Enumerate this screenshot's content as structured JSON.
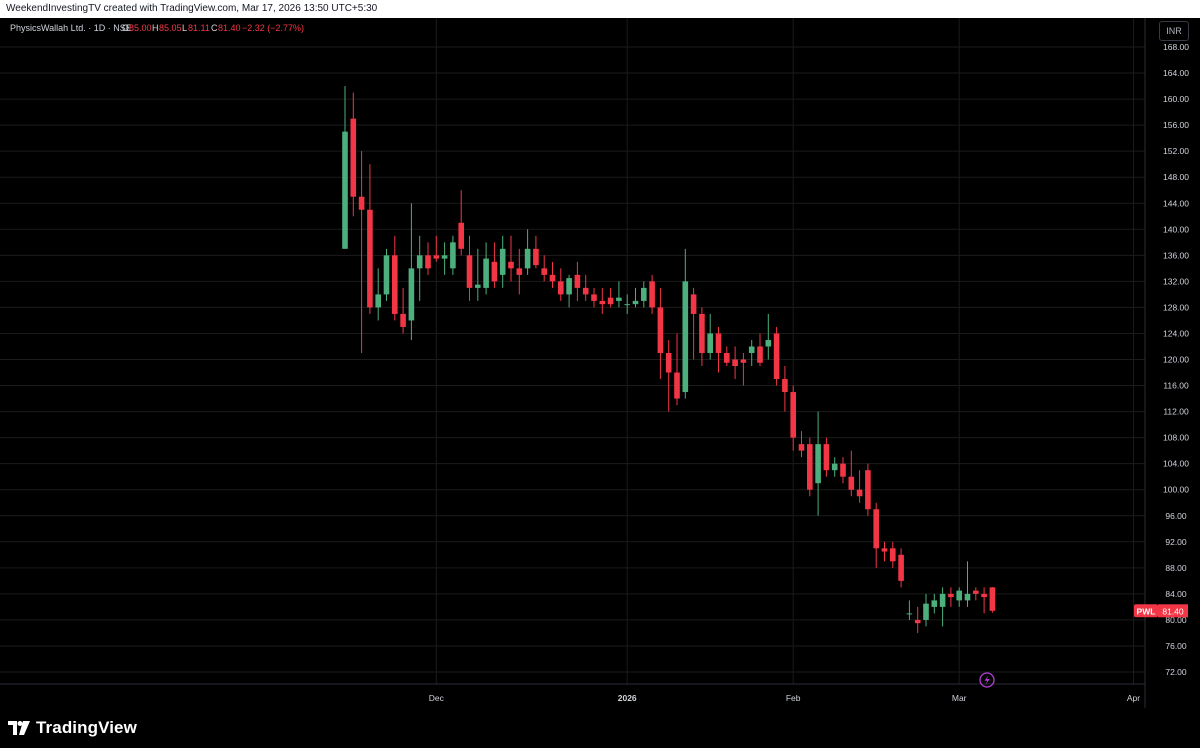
{
  "top_banner": "WeekendInvestingTV created with TradingView.com, Mar 17, 2026 13:50 UTC+5:30",
  "legend": {
    "symbol": "PhysicsWallah Ltd. · 1D · NSE",
    "o_label": "O",
    "o_value": "85.00",
    "h_label": "H",
    "h_value": "85.05",
    "l_label": "L",
    "l_value": "81.11",
    "c_label": "C",
    "c_value": "81.40",
    "change": "−2.32 (−2.77%)"
  },
  "currency_button": "INR",
  "brand": "TradingView",
  "price_tag": {
    "symbol": "PWL",
    "value": "81.40"
  },
  "colors": {
    "up": "#26a69a",
    "up_body": "#4caf7d",
    "down": "#f23645",
    "background": "#000000",
    "grid": "#1b1b1b",
    "axis_text": "#d1d4dc"
  },
  "chart_data": {
    "type": "candlestick",
    "y_ticks": [
      72,
      76,
      80,
      84,
      88,
      92,
      96,
      100,
      104,
      108,
      112,
      116,
      120,
      124,
      128,
      132,
      136,
      140,
      144,
      148,
      152,
      156,
      160,
      164,
      168
    ],
    "y_tick_labels": [
      "72.00",
      "76.00",
      "80.00",
      "84.00",
      "88.00",
      "92.00",
      "96.00",
      "100.00",
      "104.00",
      "108.00",
      "112.00",
      "116.00",
      "120.00",
      "124.00",
      "128.00",
      "132.00",
      "136.00",
      "140.00",
      "144.00",
      "148.00",
      "152.00",
      "156.00",
      "160.00",
      "164.00",
      "168.00"
    ],
    "ylim": [
      69,
      172
    ],
    "x_labels": [
      {
        "label": "Dec",
        "index": 11
      },
      {
        "label": "2026",
        "index": 34
      },
      {
        "label": "Feb",
        "index": 54
      },
      {
        "label": "Mar",
        "index": 74
      },
      {
        "label": "Apr",
        "index": 95
      }
    ],
    "x_count": 100,
    "candles": [
      {
        "o": 137.0,
        "h": 162.0,
        "l": 137.0,
        "c": 155.0
      },
      {
        "o": 157.0,
        "h": 161.0,
        "l": 142.0,
        "c": 145.0
      },
      {
        "o": 145.0,
        "h": 152.0,
        "l": 121.0,
        "c": 143.0
      },
      {
        "o": 143.0,
        "h": 150.0,
        "l": 127.0,
        "c": 128.0
      },
      {
        "o": 128.0,
        "h": 134.0,
        "l": 126.0,
        "c": 130.0
      },
      {
        "o": 130.0,
        "h": 137.0,
        "l": 129.0,
        "c": 136.0
      },
      {
        "o": 136.0,
        "h": 139.0,
        "l": 126.0,
        "c": 127.0
      },
      {
        "o": 127.0,
        "h": 131.0,
        "l": 124.0,
        "c": 125.0
      },
      {
        "o": 126.0,
        "h": 144.0,
        "l": 123.0,
        "c": 134.0
      },
      {
        "o": 134.0,
        "h": 139.0,
        "l": 129.0,
        "c": 136.0
      },
      {
        "o": 136.0,
        "h": 138.0,
        "l": 133.0,
        "c": 134.0
      },
      {
        "o": 136.0,
        "h": 139.0,
        "l": 135.0,
        "c": 135.5
      },
      {
        "o": 135.5,
        "h": 138.0,
        "l": 133.0,
        "c": 136.0
      },
      {
        "o": 134.0,
        "h": 139.0,
        "l": 133.0,
        "c": 138.0
      },
      {
        "o": 141.0,
        "h": 146.0,
        "l": 136.0,
        "c": 137.0
      },
      {
        "o": 136.0,
        "h": 139.0,
        "l": 129.0,
        "c": 131.0
      },
      {
        "o": 131.0,
        "h": 137.0,
        "l": 129.0,
        "c": 131.5
      },
      {
        "o": 131.0,
        "h": 138.0,
        "l": 130.0,
        "c": 135.5
      },
      {
        "o": 135.0,
        "h": 138.0,
        "l": 131.0,
        "c": 132.0
      },
      {
        "o": 133.0,
        "h": 139.0,
        "l": 131.0,
        "c": 137.0
      },
      {
        "o": 135.0,
        "h": 139.0,
        "l": 132.0,
        "c": 134.0
      },
      {
        "o": 134.0,
        "h": 137.0,
        "l": 130.0,
        "c": 133.0
      },
      {
        "o": 134.0,
        "h": 140.0,
        "l": 133.0,
        "c": 137.0
      },
      {
        "o": 137.0,
        "h": 139.0,
        "l": 134.0,
        "c": 134.5
      },
      {
        "o": 134.0,
        "h": 136.0,
        "l": 132.0,
        "c": 133.0
      },
      {
        "o": 133.0,
        "h": 135.0,
        "l": 131.0,
        "c": 132.0
      },
      {
        "o": 132.0,
        "h": 134.0,
        "l": 129.0,
        "c": 130.0
      },
      {
        "o": 130.0,
        "h": 133.0,
        "l": 128.0,
        "c": 132.5
      },
      {
        "o": 133.0,
        "h": 135.0,
        "l": 129.0,
        "c": 131.0
      },
      {
        "o": 131.0,
        "h": 133.0,
        "l": 129.0,
        "c": 130.0
      },
      {
        "o": 130.0,
        "h": 131.0,
        "l": 128.0,
        "c": 129.0
      },
      {
        "o": 129.0,
        "h": 131.0,
        "l": 127.0,
        "c": 128.5
      },
      {
        "o": 129.5,
        "h": 131.0,
        "l": 128.0,
        "c": 128.5
      },
      {
        "o": 129.0,
        "h": 132.0,
        "l": 128.0,
        "c": 129.5
      },
      {
        "o": 128.5,
        "h": 130.0,
        "l": 127.0,
        "c": 128.5
      },
      {
        "o": 128.5,
        "h": 131.0,
        "l": 128.0,
        "c": 129.0
      },
      {
        "o": 129.0,
        "h": 132.0,
        "l": 128.0,
        "c": 131.0
      },
      {
        "o": 132.0,
        "h": 133.0,
        "l": 127.0,
        "c": 128.0
      },
      {
        "o": 128.0,
        "h": 131.0,
        "l": 117.0,
        "c": 121.0
      },
      {
        "o": 121.0,
        "h": 123.0,
        "l": 112.0,
        "c": 118.0
      },
      {
        "o": 118.0,
        "h": 124.0,
        "l": 113.0,
        "c": 114.0
      },
      {
        "o": 115.0,
        "h": 137.0,
        "l": 114.0,
        "c": 132.0
      },
      {
        "o": 130.0,
        "h": 131.0,
        "l": 120.0,
        "c": 127.0
      },
      {
        "o": 127.0,
        "h": 128.0,
        "l": 119.0,
        "c": 121.0
      },
      {
        "o": 121.0,
        "h": 127.0,
        "l": 120.0,
        "c": 124.0
      },
      {
        "o": 124.0,
        "h": 125.0,
        "l": 118.0,
        "c": 121.0
      },
      {
        "o": 121.0,
        "h": 122.0,
        "l": 119.0,
        "c": 119.5
      },
      {
        "o": 120.0,
        "h": 122.0,
        "l": 117.0,
        "c": 119.0
      },
      {
        "o": 120.0,
        "h": 121.0,
        "l": 116.0,
        "c": 119.5
      },
      {
        "o": 121.0,
        "h": 123.0,
        "l": 119.0,
        "c": 122.0
      },
      {
        "o": 122.0,
        "h": 124.0,
        "l": 119.0,
        "c": 119.5
      },
      {
        "o": 122.0,
        "h": 127.0,
        "l": 120.0,
        "c": 123.0
      },
      {
        "o": 124.0,
        "h": 125.0,
        "l": 116.0,
        "c": 117.0
      },
      {
        "o": 117.0,
        "h": 119.0,
        "l": 112.0,
        "c": 115.0
      },
      {
        "o": 115.0,
        "h": 116.0,
        "l": 106.0,
        "c": 108.0
      },
      {
        "o": 107.0,
        "h": 109.0,
        "l": 105.0,
        "c": 106.0
      },
      {
        "o": 107.0,
        "h": 108.0,
        "l": 99.0,
        "c": 100.0
      },
      {
        "o": 101.0,
        "h": 112.0,
        "l": 96.0,
        "c": 107.0
      },
      {
        "o": 107.0,
        "h": 108.0,
        "l": 102.0,
        "c": 103.0
      },
      {
        "o": 103.0,
        "h": 105.0,
        "l": 102.0,
        "c": 104.0
      },
      {
        "o": 104.0,
        "h": 105.0,
        "l": 101.0,
        "c": 102.0
      },
      {
        "o": 102.0,
        "h": 106.0,
        "l": 99.0,
        "c": 100.0
      },
      {
        "o": 100.0,
        "h": 103.0,
        "l": 98.0,
        "c": 99.0
      },
      {
        "o": 103.0,
        "h": 104.0,
        "l": 96.0,
        "c": 97.0
      },
      {
        "o": 97.0,
        "h": 98.0,
        "l": 88.0,
        "c": 91.0
      },
      {
        "o": 91.0,
        "h": 92.0,
        "l": 89.0,
        "c": 90.5
      },
      {
        "o": 91.0,
        "h": 92.0,
        "l": 88.0,
        "c": 89.0
      },
      {
        "o": 90.0,
        "h": 91.0,
        "l": 85.0,
        "c": 86.0
      },
      {
        "o": 81.0,
        "h": 83.0,
        "l": 80.0,
        "c": 81.0
      },
      {
        "o": 80.0,
        "h": 82.0,
        "l": 78.0,
        "c": 79.5
      },
      {
        "o": 80.0,
        "h": 84.0,
        "l": 79.0,
        "c": 82.5
      },
      {
        "o": 82.0,
        "h": 84.0,
        "l": 81.0,
        "c": 83.0
      },
      {
        "o": 82.0,
        "h": 85.0,
        "l": 79.0,
        "c": 84.0
      },
      {
        "o": 84.0,
        "h": 85.0,
        "l": 82.0,
        "c": 83.5
      },
      {
        "o": 83.0,
        "h": 85.0,
        "l": 82.0,
        "c": 84.5
      },
      {
        "o": 83.0,
        "h": 89.0,
        "l": 82.0,
        "c": 84.0
      },
      {
        "o": 84.5,
        "h": 85.0,
        "l": 83.0,
        "c": 84.0
      },
      {
        "o": 84.0,
        "h": 85.0,
        "l": 81.0,
        "c": 83.5
      },
      {
        "o": 85.0,
        "h": 85.05,
        "l": 81.11,
        "c": 81.4
      }
    ]
  }
}
